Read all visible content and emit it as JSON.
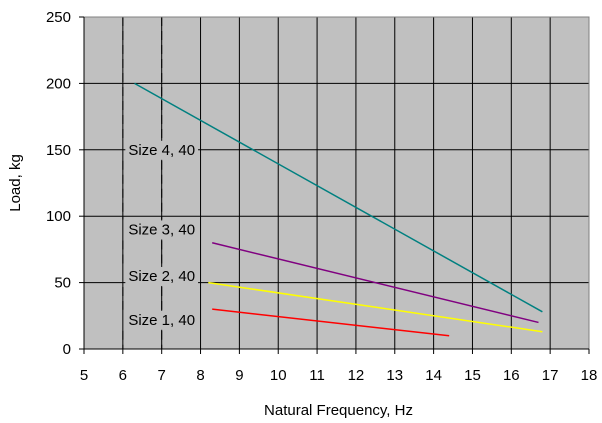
{
  "chart_data": {
    "type": "line",
    "xlabel": "Natural Frequency, Hz",
    "ylabel": "Load, kg",
    "xlim": [
      5,
      18
    ],
    "ylim": [
      0,
      250
    ],
    "x_ticks": [
      5,
      6,
      7,
      8,
      9,
      10,
      11,
      12,
      13,
      14,
      15,
      16,
      17,
      18
    ],
    "y_ticks": [
      0,
      50,
      100,
      150,
      200,
      250
    ],
    "grid": true,
    "plot_background": "#c0c0c0",
    "grid_color": "#000000",
    "series": [
      {
        "color": "#008080",
        "x": [
          6.3,
          16.8
        ],
        "y": [
          200,
          28
        ]
      },
      {
        "color": "#800080",
        "x": [
          8.3,
          16.7
        ],
        "y": [
          80,
          20
        ]
      },
      {
        "color": "#ffff00",
        "x": [
          8.2,
          16.8
        ],
        "y": [
          50,
          13
        ]
      },
      {
        "color": "#ff0000",
        "x": [
          8.3,
          14.4
        ],
        "y": [
          30,
          10
        ]
      }
    ],
    "annotations": [
      {
        "text": "Size 4, 40",
        "x": 7.0,
        "y": 150
      },
      {
        "text": "Size 3, 40",
        "x": 7.0,
        "y": 90
      },
      {
        "text": "Size 2, 40",
        "x": 7.0,
        "y": 55
      },
      {
        "text": "Size 1, 40",
        "x": 7.0,
        "y": 22
      }
    ],
    "dashed_guides": [
      6,
      7
    ]
  }
}
